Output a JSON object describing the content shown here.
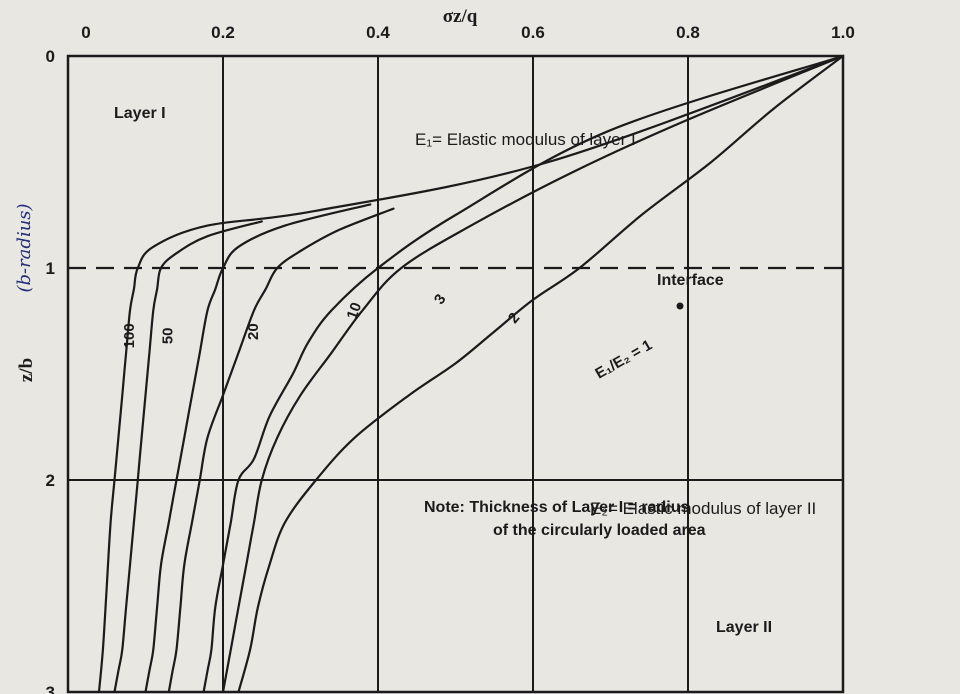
{
  "chart_data": {
    "type": "line",
    "title": "",
    "xlabel": "σz/q",
    "ylabel": "z/b",
    "ylabel_handwritten": "(b-radius)",
    "xlim": [
      0,
      1.0
    ],
    "ylim": [
      0,
      3
    ],
    "y_inverted": true,
    "x_axis_position": "top",
    "grid": true,
    "x_ticks": [
      "0",
      "0.2",
      "0.4",
      "0.6",
      "0.8",
      "1.0"
    ],
    "x_tick_values": [
      0,
      0.2,
      0.4,
      0.6,
      0.8,
      1.0
    ],
    "y_ticks": [
      "0",
      "1",
      "2",
      "3"
    ],
    "y_tick_values": [
      0,
      1,
      2,
      3
    ],
    "interface_depth": 1,
    "layer_boundary_depth": 2,
    "series": [
      {
        "name": "100",
        "x": [
          1.0,
          0.62,
          0.32,
          0.18,
          0.11,
          0.09,
          0.085,
          0.08,
          0.075,
          0.07,
          0.065,
          0.06,
          0.055,
          0.05,
          0.045,
          0.04
        ],
        "y": [
          0,
          0.5,
          0.73,
          0.8,
          0.9,
          1.0,
          1.1,
          1.2,
          1.4,
          1.6,
          1.8,
          2.0,
          2.2,
          2.5,
          2.8,
          3.0
        ]
      },
      {
        "name": "50",
        "x": [
          0.25,
          0.18,
          0.14,
          0.12,
          0.115,
          0.11,
          0.105,
          0.1,
          0.095,
          0.09,
          0.085,
          0.08,
          0.075,
          0.07,
          0.065,
          0.06
        ],
        "y": [
          0.78,
          0.85,
          0.93,
          1.0,
          1.1,
          1.2,
          1.4,
          1.6,
          1.8,
          2.0,
          2.2,
          2.4,
          2.6,
          2.8,
          2.9,
          3.0
        ]
      },
      {
        "name": "20",
        "x": [
          0.39,
          0.28,
          0.22,
          0.2,
          0.19,
          0.18,
          0.17,
          0.16,
          0.15,
          0.14,
          0.13,
          0.12,
          0.115,
          0.11,
          0.105,
          0.1
        ],
        "y": [
          0.7,
          0.8,
          0.9,
          1.0,
          1.1,
          1.2,
          1.4,
          1.6,
          1.8,
          2.0,
          2.2,
          2.4,
          2.6,
          2.8,
          2.9,
          3.0
        ]
      },
      {
        "name": "10",
        "x": [
          0.42,
          0.35,
          0.3,
          0.27,
          0.255,
          0.24,
          0.22,
          0.2,
          0.18,
          0.17,
          0.16,
          0.15,
          0.145,
          0.14,
          0.135,
          0.13
        ],
        "y": [
          0.72,
          0.82,
          0.92,
          1.0,
          1.1,
          1.2,
          1.4,
          1.6,
          1.8,
          2.0,
          2.2,
          2.4,
          2.6,
          2.8,
          2.9,
          3.0
        ]
      },
      {
        "name": "3",
        "x": [
          1.0,
          0.7,
          0.5,
          0.4,
          0.34,
          0.31,
          0.29,
          0.26,
          0.24,
          0.22,
          0.21,
          0.2,
          0.19,
          0.185,
          0.18,
          0.175
        ],
        "y": [
          0,
          0.35,
          0.75,
          1.0,
          1.2,
          1.35,
          1.5,
          1.7,
          1.9,
          2.0,
          2.2,
          2.4,
          2.6,
          2.8,
          2.9,
          3.0
        ]
      },
      {
        "name": "2",
        "x": [
          1.0,
          0.8,
          0.65,
          0.52,
          0.43,
          0.38,
          0.34,
          0.3,
          0.27,
          0.25,
          0.24,
          0.23,
          0.22,
          0.21,
          0.205,
          0.2
        ],
        "y": [
          0,
          0.3,
          0.55,
          0.8,
          1.0,
          1.2,
          1.4,
          1.6,
          1.8,
          2.0,
          2.2,
          2.4,
          2.6,
          2.8,
          2.9,
          3.0
        ]
      },
      {
        "name": "E1/E2 = 1",
        "x": [
          1.0,
          0.91,
          0.83,
          0.74,
          0.66,
          0.6,
          0.55,
          0.5,
          0.44,
          0.37,
          0.32,
          0.28,
          0.26,
          0.245,
          0.235,
          0.22
        ],
        "y": [
          0,
          0.25,
          0.5,
          0.75,
          1.0,
          1.15,
          1.3,
          1.45,
          1.6,
          1.8,
          2.0,
          2.2,
          2.4,
          2.6,
          2.8,
          3.0
        ]
      }
    ],
    "curve_labels": [
      "100",
      "50",
      "20",
      "10",
      "3",
      "2",
      "E₁/E₂ = 1"
    ],
    "annotations": {
      "layer1": "Layer I",
      "layer2": "Layer II",
      "e1_def": "E₁= Elastic modulus of layer I",
      "e2_def": "E₂= Elastic modulus of layer II",
      "interface": "Interface",
      "note_line1": "Note: Thickness of Layer I = radius",
      "note_line2": "of the circularly loaded area"
    },
    "colors": {
      "ink": "#1b1b1b",
      "paper": "#e9e7e2",
      "handwriting": "#23307a"
    }
  }
}
